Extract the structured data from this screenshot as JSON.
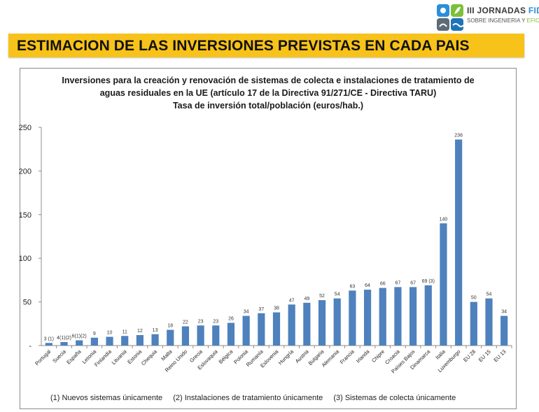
{
  "header": {
    "logo_line1_prefix": "III JORNADAS ",
    "logo_line1_accent": "FIDEX",
    "logo_line2_prefix": "SOBRE INGENIERIA Y ",
    "logo_line2_accent": "EFICIENCIA",
    "banner_title": "ESTIMACION DE LAS INVERSIONES PREVISTAS EN CADA PAIS"
  },
  "colors": {
    "banner_bg": "#f7c21a",
    "bar_fill": "#4e81bd",
    "logo_blue": "#2a8fd8",
    "logo_green": "#7cbf3a"
  },
  "chart_data": {
    "type": "bar",
    "title_lines": [
      "Inversiones para la creación y renovación de sistemas de colecta e instalaciones de tratamiento de",
      "aguas residuales en la UE  (artículo 17 de la Directiva 91/271/CE - Directiva TARU)",
      "Tasa de inversión total/población (euros/hab.)"
    ],
    "categories": [
      "Portugal",
      "Suecia",
      "España",
      "Letonia",
      "Finlandia",
      "Lituania",
      "Estonia",
      "Chequia",
      "Malta",
      "Reino Unido",
      "Grecia",
      "Eslovaquia",
      "Bélgica",
      "Polonia",
      "Rumanía",
      "Eslovenia",
      "Hungría",
      "Austria",
      "Bulgaria",
      "Alemania",
      "Francia",
      "Irlanda",
      "Chipre",
      "Croacia",
      "Países Bajos",
      "Dinamarca",
      "Italia",
      "Luxemburgo",
      "EU 28",
      "EU 15",
      "EU 13"
    ],
    "values": [
      3,
      4,
      6,
      9,
      10,
      11,
      12,
      13,
      18,
      22,
      23,
      23,
      26,
      34,
      37,
      38,
      47,
      49,
      52,
      54,
      63,
      64,
      66,
      67,
      67,
      69,
      140,
      236,
      50,
      54,
      34
    ],
    "data_labels": [
      "3 (1)",
      "4(1)(2)",
      "6(1)(2)",
      "9",
      "10",
      "11",
      "12",
      "13",
      "18",
      "22",
      "23",
      "23",
      "26",
      "34",
      "37",
      "38",
      "47",
      "49",
      "52",
      "54",
      "63",
      "64",
      "66",
      "67",
      "67",
      "69 (3)",
      "140",
      "236",
      "50",
      "54",
      "34"
    ],
    "yticks": [
      "-",
      "50",
      "100",
      "150",
      "200",
      "250"
    ],
    "ylim": [
      0,
      250
    ],
    "grid": false,
    "legend": "none",
    "footnotes": [
      "(1) Nuevos sistemas únicamente",
      "(2) Instalaciones de tratamiento únicamente",
      "(3) Sistemas de colecta únicamente"
    ]
  }
}
